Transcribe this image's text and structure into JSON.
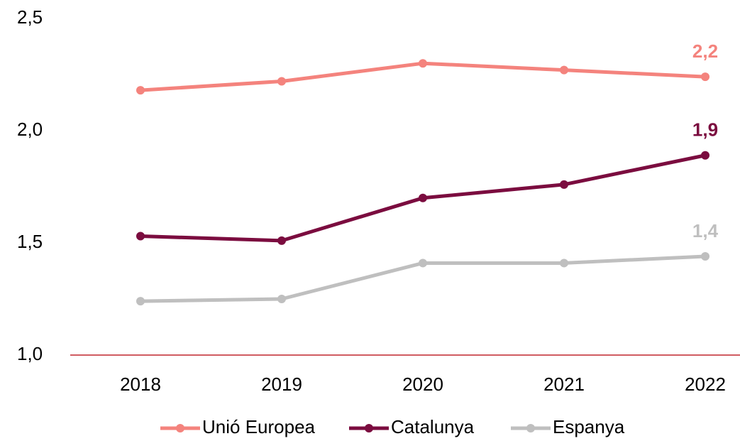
{
  "chart_data": {
    "type": "line",
    "categories": [
      "2018",
      "2019",
      "2020",
      "2021",
      "2022"
    ],
    "series": [
      {
        "name": "Unió Europea",
        "color": "#f4837d",
        "values": [
          2.18,
          2.22,
          2.3,
          2.27,
          2.24
        ],
        "value_labels": [
          null,
          null,
          null,
          null,
          "2,2"
        ]
      },
      {
        "name": "Catalunya",
        "color": "#7b0c3f",
        "values": [
          1.53,
          1.51,
          1.7,
          1.76,
          1.89
        ],
        "value_labels": [
          null,
          null,
          null,
          null,
          "1,9"
        ]
      },
      {
        "name": "Espanya",
        "color": "#bfbfbf",
        "values": [
          1.24,
          1.25,
          1.41,
          1.41,
          1.44
        ],
        "value_labels": [
          null,
          null,
          null,
          null,
          "1,4"
        ]
      }
    ],
    "ylim": [
      1.0,
      2.5
    ],
    "yticks": [
      {
        "value": 1.0,
        "label": "1,0"
      },
      {
        "value": 1.5,
        "label": "1,5"
      },
      {
        "value": 2.0,
        "label": "2,0"
      },
      {
        "value": 2.5,
        "label": "2,5"
      }
    ],
    "grid": false,
    "legend": "bottom"
  }
}
